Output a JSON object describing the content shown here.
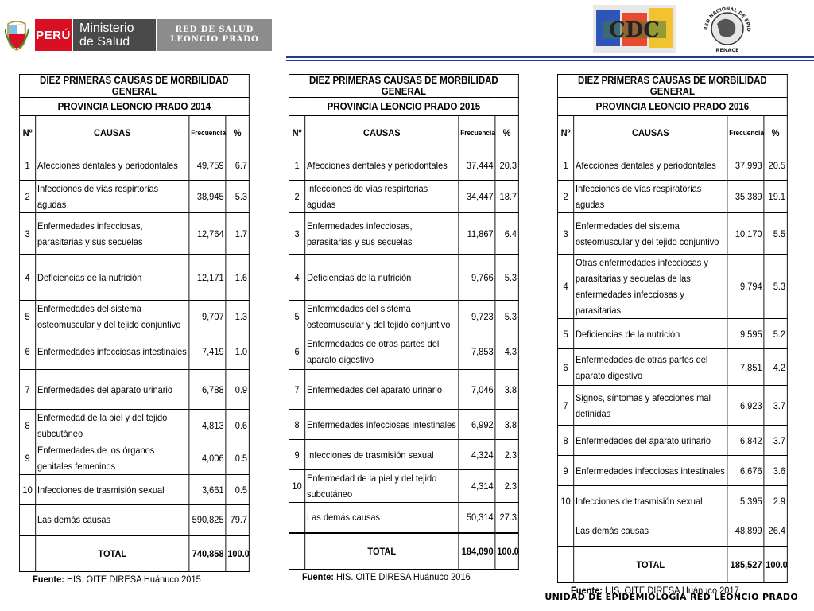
{
  "header": {
    "peru_label": "PERÚ",
    "ministry_line1": "Ministerio",
    "ministry_line2": "de Salud",
    "red_line1": "RED DE SALUD",
    "red_line2": "LEONCIO PRADO",
    "cdc_text": "CDC",
    "renace_arc": "RED NACIONAL DE EPIDEMIOLOGIA",
    "renace_label": "RENACE"
  },
  "tables": [
    {
      "title": "DIEZ PRIMERAS CAUSAS DE MORBILIDAD GENERAL",
      "subtitle": "PROVINCIA LEONCIO PRADO 2014",
      "columns": {
        "num": "Nº",
        "cause": "CAUSAS",
        "freq": "Frecuencia",
        "pct": "%"
      },
      "rows": [
        {
          "n": "1",
          "cause": "Afecciones dentales y periodontales",
          "freq": "49,759",
          "pct": "6.7"
        },
        {
          "n": "2",
          "cause": "Infecciones de vías respirtorias agudas",
          "freq": "38,945",
          "pct": "5.3"
        },
        {
          "n": "3",
          "cause": "Enfermedades infecciosas, parasitarias y sus secuelas",
          "freq": "12,764",
          "pct": "1.7"
        },
        {
          "n": "4",
          "cause": "Deficiencias de la nutrición",
          "freq": "12,171",
          "pct": "1.6"
        },
        {
          "n": "5",
          "cause": "Enfermedades del sistema osteomuscular y del tejido conjuntivo",
          "freq": "9,707",
          "pct": "1.3"
        },
        {
          "n": "6",
          "cause": "Enfermedades infecciosas intestinales",
          "freq": "7,419",
          "pct": "1.0"
        },
        {
          "n": "7",
          "cause": "Enfermedades del aparato urinario",
          "freq": "6,788",
          "pct": "0.9"
        },
        {
          "n": "8",
          "cause": "Enfermedad de la piel y del tejido subcutáneo",
          "freq": "4,813",
          "pct": "0.6"
        },
        {
          "n": "9",
          "cause": "Enfermedades de los órganos genitales femeninos",
          "freq": "4,006",
          "pct": "0.5"
        },
        {
          "n": "10",
          "cause": "Infecciones de trasmisión sexual",
          "freq": "3,661",
          "pct": "0.5"
        },
        {
          "n": "",
          "cause": "Las demás causas",
          "freq": "590,825",
          "pct": "79.7"
        }
      ],
      "total_label": "TOTAL",
      "total_freq": "740,858",
      "total_pct": "100.0",
      "source_label": "Fuente:",
      "source_text": "HIS. OITE DIRESA Huánuco 2015"
    },
    {
      "title": "DIEZ PRIMERAS CAUSAS DE MORBILIDAD GENERAL",
      "subtitle": "PROVINCIA LEONCIO PRADO 2015",
      "columns": {
        "num": "Nº",
        "cause": "CAUSAS",
        "freq": "Frecuencia",
        "pct": "%"
      },
      "rows": [
        {
          "n": "1",
          "cause": "Afecciones dentales y periodontales",
          "freq": "37,444",
          "pct": "20.3"
        },
        {
          "n": "2",
          "cause": "Infecciones de vías respirtorias agudas",
          "freq": "34,447",
          "pct": "18.7"
        },
        {
          "n": "3",
          "cause": "Enfermedades infecciosas, parasitarias y sus secuelas",
          "freq": "11,867",
          "pct": "6.4"
        },
        {
          "n": "4",
          "cause": "Deficiencias de la nutrición",
          "freq": "9,766",
          "pct": "5.3"
        },
        {
          "n": "5",
          "cause": "Enfermedades del sistema osteomuscular y del tejido conjuntivo",
          "freq": "9,723",
          "pct": "5.3"
        },
        {
          "n": "6",
          "cause": "Enfermedades de otras partes del aparato digestivo",
          "freq": "7,853",
          "pct": "4.3"
        },
        {
          "n": "7",
          "cause": "Enfermedades del aparato urinario",
          "freq": "7,046",
          "pct": "3.8"
        },
        {
          "n": "8",
          "cause": "Enfermedades infecciosas intestinales",
          "freq": "6,992",
          "pct": "3.8"
        },
        {
          "n": "9",
          "cause": "Infecciones de trasmisión sexual",
          "freq": "4,324",
          "pct": "2.3"
        },
        {
          "n": "10",
          "cause": "Enfermedad de la piel y del tejido subcutáneo",
          "freq": "4,314",
          "pct": "2.3"
        },
        {
          "n": "",
          "cause": "Las demás causas",
          "freq": "50,314",
          "pct": "27.3"
        }
      ],
      "total_label": "TOTAL",
      "total_freq": "184,090",
      "total_pct": "100.0",
      "source_label": "Fuente:",
      "source_text": "HIS. OITE DIRESA Huánuco 2016"
    },
    {
      "title": "DIEZ PRIMERAS CAUSAS DE MORBILIDAD GENERAL",
      "subtitle": "PROVINCIA LEONCIO PRADO 2016",
      "columns": {
        "num": "Nº",
        "cause": "CAUSAS",
        "freq": "Frecuencia",
        "pct": "%"
      },
      "rows": [
        {
          "n": "1",
          "cause": "Afecciones dentales y periodontales",
          "freq": "37,993",
          "pct": "20.5"
        },
        {
          "n": "2",
          "cause": "Infecciones de vías respiratorias agudas",
          "freq": "35,389",
          "pct": "19.1"
        },
        {
          "n": "3",
          "cause": "Enfermedades del sistema osteomuscular y del tejido conjuntivo",
          "freq": "10,170",
          "pct": "5.5"
        },
        {
          "n": "4",
          "cause": "Otras enfermedades infecciosas y parasitarias y secuelas de las enfermedades infecciosas y parasitarias",
          "freq": "9,794",
          "pct": "5.3"
        },
        {
          "n": "5",
          "cause": "Deficiencias de la nutrición",
          "freq": "9,595",
          "pct": "5.2"
        },
        {
          "n": "6",
          "cause": "Enfermedades de otras partes del aparato digestivo",
          "freq": "7,851",
          "pct": "4.2"
        },
        {
          "n": "7",
          "cause": "Signos, síntomas y afecciones mal definidas",
          "freq": "6,923",
          "pct": "3.7"
        },
        {
          "n": "8",
          "cause": "Enfermedades del aparato urinario",
          "freq": "6,842",
          "pct": "3.7"
        },
        {
          "n": "9",
          "cause": "Enfermedades infecciosas intestinales",
          "freq": "6,676",
          "pct": "3.6"
        },
        {
          "n": "10",
          "cause": "Infecciones de trasmisión sexual",
          "freq": "5,395",
          "pct": "2.9"
        },
        {
          "n": "",
          "cause": "Las demás causas",
          "freq": "48,899",
          "pct": "26.4"
        }
      ],
      "total_label": "TOTAL",
      "total_freq": "185,527",
      "total_pct": "100.0",
      "source_label": "Fuente:",
      "source_text": "HIS. OITE DIRESA Huánuco 2017"
    }
  ],
  "footer": {
    "unit_label": "UNIDAD  DE EPIDEMIOLOGIA RED LEONCIO PRADO"
  },
  "colors": {
    "peru_red": "#d91023",
    "ministry_gray": "#4a4a4a",
    "red_box_gray": "#8c8c8c",
    "rule_blue": "#1f3d8f"
  }
}
